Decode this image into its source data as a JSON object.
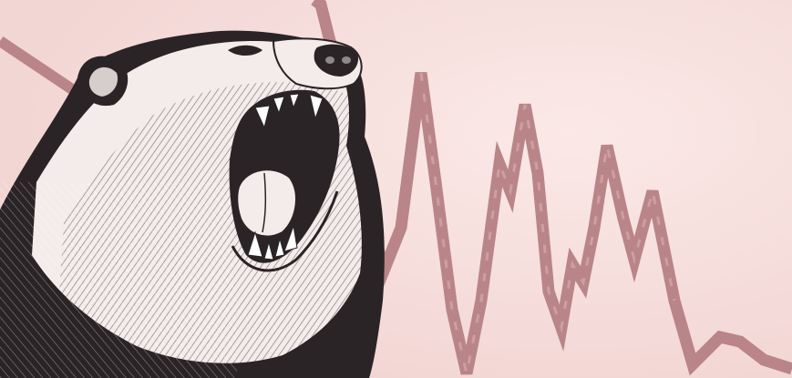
{
  "illustration": {
    "subject": "roaring-bear",
    "background_color": "#f2d6d4",
    "background_highlight": "#fbe9e7",
    "line_color": "#b98588",
    "ink_color": "#2a2426",
    "fur_light_color": "#ffffff"
  }
}
